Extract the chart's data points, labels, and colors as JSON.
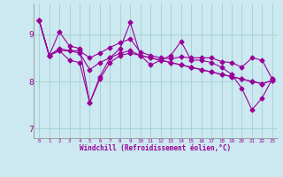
{
  "xlabel": "Windchill (Refroidissement éolien,°C)",
  "bg_color": "#cce8f0",
  "line_color": "#990099",
  "grid_color": "#99cccc",
  "xlim": [
    -0.5,
    23.5
  ],
  "ylim": [
    6.8,
    9.65
  ],
  "xticks": [
    0,
    1,
    2,
    3,
    4,
    5,
    6,
    7,
    8,
    9,
    10,
    11,
    12,
    13,
    14,
    15,
    16,
    17,
    18,
    19,
    20,
    21,
    22,
    23
  ],
  "yticks": [
    7,
    8,
    9
  ],
  "line1_x": [
    0,
    1,
    2,
    3,
    4,
    5,
    6,
    7,
    8,
    9,
    10,
    11,
    12,
    13,
    14,
    15,
    16,
    17,
    18,
    19,
    20,
    21,
    22,
    23
  ],
  "line1_y": [
    9.3,
    8.55,
    8.65,
    8.45,
    8.4,
    7.55,
    8.05,
    8.4,
    8.55,
    8.6,
    8.55,
    8.5,
    8.45,
    8.4,
    8.35,
    8.3,
    8.25,
    8.2,
    8.15,
    8.1,
    8.05,
    8.0,
    7.95,
    8.02
  ],
  "line2_x": [
    0,
    1,
    2,
    3,
    4,
    5,
    6,
    7,
    8,
    9,
    10,
    11,
    12,
    13,
    14,
    15,
    16,
    17,
    18,
    19,
    20,
    21,
    22,
    23
  ],
  "line2_y": [
    9.3,
    8.55,
    9.05,
    8.75,
    8.7,
    7.55,
    8.1,
    8.5,
    8.7,
    9.25,
    8.55,
    8.35,
    8.45,
    8.55,
    8.85,
    8.45,
    8.45,
    8.4,
    8.3,
    8.15,
    7.85,
    7.4,
    7.65,
    8.05
  ],
  "line3_x": [
    0,
    1,
    2,
    3,
    4,
    5,
    6,
    7,
    8,
    9,
    10,
    11,
    12,
    13,
    14,
    15,
    16,
    17,
    18,
    19,
    20,
    21,
    22,
    23
  ],
  "line3_y": [
    9.3,
    8.55,
    8.65,
    8.65,
    8.65,
    8.5,
    8.6,
    8.72,
    8.82,
    8.9,
    8.62,
    8.55,
    8.5,
    8.48,
    8.52,
    8.5,
    8.5,
    8.5,
    8.42,
    8.4,
    8.3,
    8.5,
    8.45,
    8.05
  ],
  "line4_x": [
    0,
    1,
    2,
    3,
    4,
    5,
    6,
    7,
    8,
    9,
    10,
    11,
    12,
    13,
    14,
    15,
    16,
    17,
    18,
    19,
    20,
    21,
    22,
    23
  ],
  "line4_y": [
    9.3,
    8.55,
    8.7,
    8.65,
    8.6,
    8.25,
    8.4,
    8.5,
    8.6,
    8.65,
    8.55,
    8.5,
    8.45,
    8.4,
    8.35,
    8.3,
    8.25,
    8.2,
    8.15,
    8.1,
    8.05,
    8.0,
    7.95,
    8.02
  ]
}
